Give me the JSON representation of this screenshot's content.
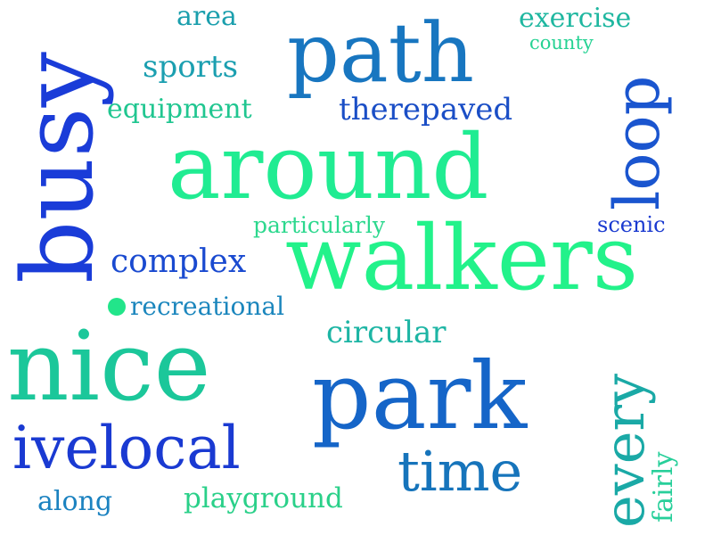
{
  "word_cloud": {
    "words": [
      {
        "id": "nice",
        "text": "nice",
        "color": "#1bc79a"
      },
      {
        "id": "walkers",
        "text": "walkers",
        "color": "#22f28a"
      },
      {
        "id": "around",
        "text": "around",
        "color": "#20ec92"
      },
      {
        "id": "park",
        "text": "park",
        "color": "#1565c8"
      },
      {
        "id": "busy",
        "text": "busy",
        "color": "#1a3cd8"
      },
      {
        "id": "path",
        "text": "path",
        "color": "#1876c0"
      },
      {
        "id": "loop",
        "text": "loop",
        "color": "#1a55cf"
      },
      {
        "id": "ivelocal",
        "text": "ivelocal",
        "color": "#1a3ad2"
      },
      {
        "id": "time",
        "text": "time",
        "color": "#1674bb"
      },
      {
        "id": "every",
        "text": "every",
        "color": "#1aa9a6"
      },
      {
        "id": "complex",
        "text": "complex",
        "color": "#1a4ad0"
      },
      {
        "id": "circular",
        "text": "circular",
        "color": "#1db5a4"
      },
      {
        "id": "recreational",
        "text": "recreational",
        "color": "#1b86bd"
      },
      {
        "id": "playground",
        "text": "playground",
        "color": "#2ad089"
      },
      {
        "id": "therepaved",
        "text": "therepaved",
        "color": "#1a4ec6"
      },
      {
        "id": "sports",
        "text": "sports",
        "color": "#1b9fb0"
      },
      {
        "id": "equipment",
        "text": "equipment",
        "color": "#20c690"
      },
      {
        "id": "exercise",
        "text": "exercise",
        "color": "#1fb7a0"
      },
      {
        "id": "county",
        "text": "county",
        "color": "#25d293"
      },
      {
        "id": "area",
        "text": "area",
        "color": "#1b9fad"
      },
      {
        "id": "particularly",
        "text": "particularly",
        "color": "#2dd88e"
      },
      {
        "id": "scenic",
        "text": "scenic",
        "color": "#1a3ad0"
      },
      {
        "id": "along",
        "text": "along",
        "color": "#1b82c0"
      },
      {
        "id": "fairly",
        "text": "fairly",
        "color": "#28cf9a"
      }
    ],
    "dot_color": "#22e58a"
  }
}
